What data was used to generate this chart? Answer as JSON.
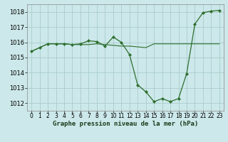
{
  "title": "Graphe pression niveau de la mer (hPa)",
  "background_color": "#cce8ea",
  "grid_color": "#aacccc",
  "line_color": "#2d6e2d",
  "xlim": [
    -0.5,
    23.5
  ],
  "ylim": [
    1011.5,
    1018.5
  ],
  "yticks": [
    1012,
    1013,
    1014,
    1015,
    1016,
    1017,
    1018
  ],
  "xticks": [
    0,
    1,
    2,
    3,
    4,
    5,
    6,
    7,
    8,
    9,
    10,
    11,
    12,
    13,
    14,
    15,
    16,
    17,
    18,
    19,
    20,
    21,
    22,
    23
  ],
  "line1_x": [
    0,
    1,
    2,
    3,
    4,
    5,
    6,
    7,
    8,
    9,
    10,
    11,
    12,
    13,
    14,
    15,
    16,
    17,
    18,
    19,
    20,
    21,
    22,
    23
  ],
  "line1_y": [
    1015.4,
    1015.65,
    1015.9,
    1015.9,
    1015.9,
    1015.85,
    1015.85,
    1015.85,
    1015.9,
    1015.85,
    1015.8,
    1015.75,
    1015.75,
    1015.7,
    1015.65,
    1015.9,
    1015.9,
    1015.9,
    1015.9,
    1015.9,
    1015.9,
    1015.9,
    1015.9,
    1015.9
  ],
  "line2_x": [
    0,
    1,
    2,
    3,
    4,
    5,
    6,
    7,
    8,
    9,
    10,
    11,
    12,
    13,
    14,
    15,
    16,
    17,
    18,
    19,
    20,
    21,
    22,
    23
  ],
  "line2_y": [
    1015.4,
    1015.65,
    1015.9,
    1015.9,
    1015.9,
    1015.85,
    1015.9,
    1016.1,
    1016.05,
    1015.75,
    1016.35,
    1016.0,
    1015.2,
    1013.2,
    1012.75,
    1012.1,
    1012.3,
    1012.1,
    1012.3,
    1013.95,
    1017.2,
    1017.95,
    1018.05,
    1018.1
  ],
  "xlabel_fontsize": 6.5,
  "tick_fontsize": 5.5,
  "ytick_fontsize": 6
}
